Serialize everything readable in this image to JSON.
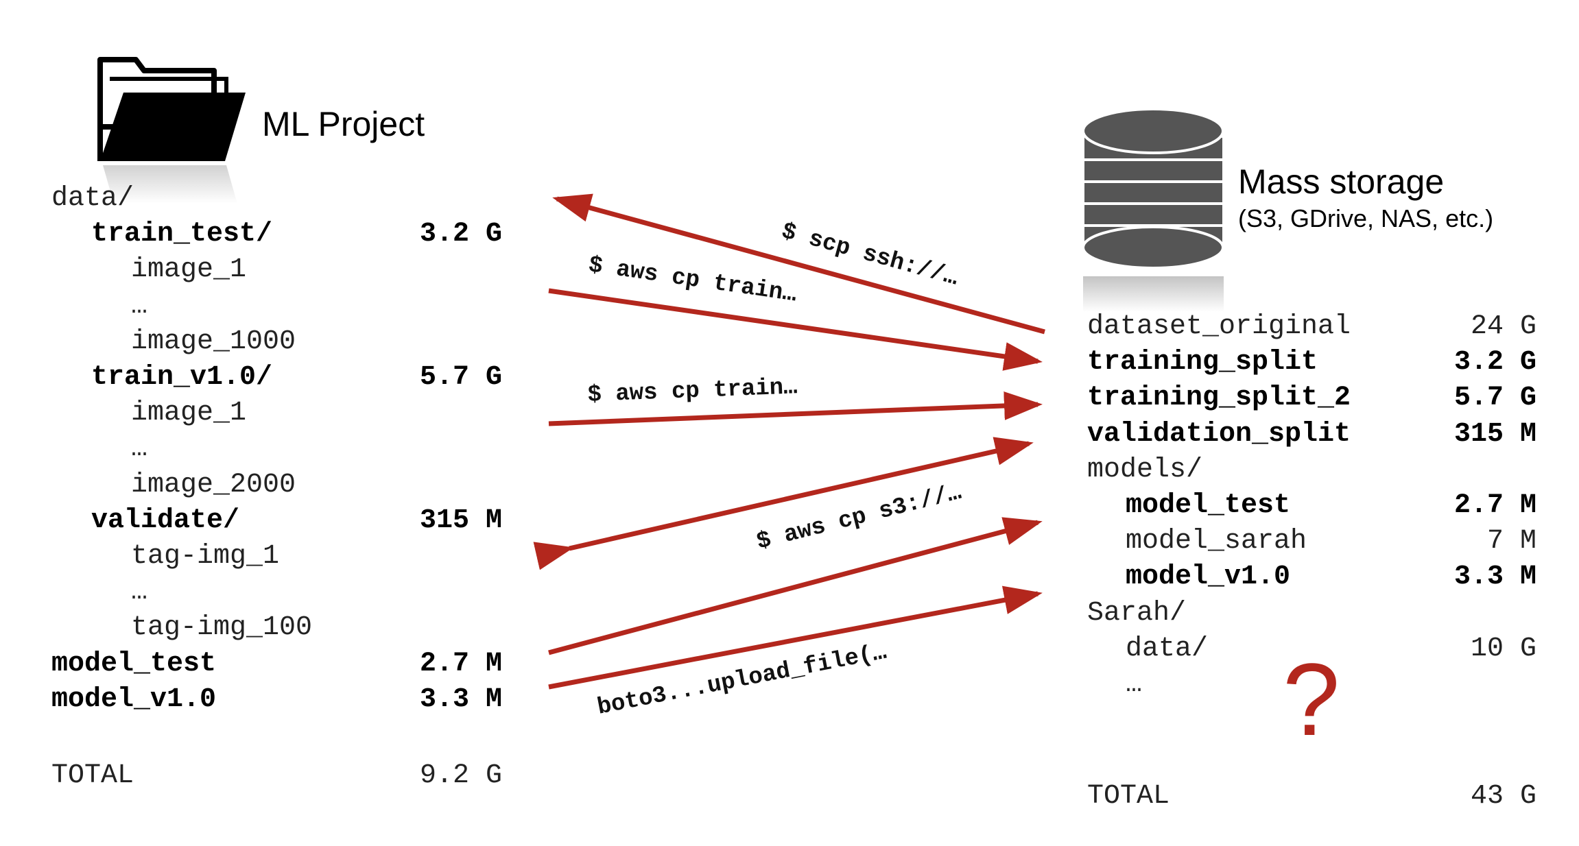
{
  "left": {
    "title": "ML Project",
    "icon": "folder-icon",
    "rows": [
      {
        "name": "data/",
        "indent": 0,
        "bold": false,
        "size": ""
      },
      {
        "name": "train_test/",
        "indent": 1,
        "bold": true,
        "size": "3.2 G"
      },
      {
        "name": "image_1",
        "indent": 2,
        "bold": false,
        "size": ""
      },
      {
        "name": "…",
        "indent": 2,
        "bold": false,
        "size": ""
      },
      {
        "name": "image_1000",
        "indent": 2,
        "bold": false,
        "size": ""
      },
      {
        "name": "train_v1.0/",
        "indent": 1,
        "bold": true,
        "size": "5.7 G"
      },
      {
        "name": "image_1",
        "indent": 2,
        "bold": false,
        "size": ""
      },
      {
        "name": "…",
        "indent": 2,
        "bold": false,
        "size": ""
      },
      {
        "name": "image_2000",
        "indent": 2,
        "bold": false,
        "size": ""
      },
      {
        "name": "validate/",
        "indent": 1,
        "bold": true,
        "size": "315 M"
      },
      {
        "name": "tag-img_1",
        "indent": 2,
        "bold": false,
        "size": ""
      },
      {
        "name": "…",
        "indent": 2,
        "bold": false,
        "size": ""
      },
      {
        "name": "tag-img_100",
        "indent": 2,
        "bold": false,
        "size": ""
      },
      {
        "name": "model_test",
        "indent": 0,
        "bold": true,
        "size": "2.7 M"
      },
      {
        "name": "model_v1.0",
        "indent": 0,
        "bold": true,
        "size": "3.3 M"
      }
    ],
    "total_label": "TOTAL",
    "total_value": "9.2 G"
  },
  "right": {
    "title": "Mass storage",
    "subtitle": "(S3, GDrive, NAS, etc.)",
    "icon": "database-icon",
    "rows": [
      {
        "name": "dataset_original",
        "indent": 0,
        "bold": false,
        "size": "24 G"
      },
      {
        "name": "training_split",
        "indent": 0,
        "bold": true,
        "size": "3.2 G"
      },
      {
        "name": "training_split_2",
        "indent": 0,
        "bold": true,
        "size": "5.7 G"
      },
      {
        "name": "validation_split",
        "indent": 0,
        "bold": true,
        "size": "315 M"
      },
      {
        "name": "models/",
        "indent": 0,
        "bold": false,
        "size": ""
      },
      {
        "name": "model_test",
        "indent": 1,
        "bold": true,
        "size": "2.7 M"
      },
      {
        "name": "model_sarah",
        "indent": 1,
        "bold": false,
        "size": "7 M"
      },
      {
        "name": "model_v1.0",
        "indent": 1,
        "bold": true,
        "size": "3.3 M"
      },
      {
        "name": "Sarah/",
        "indent": 0,
        "bold": false,
        "size": ""
      },
      {
        "name": "data/",
        "indent": 1,
        "bold": false,
        "size": "10 G"
      },
      {
        "name": "…",
        "indent": 1,
        "bold": false,
        "size": ""
      }
    ],
    "total_label": "TOTAL",
    "total_value": "43 G",
    "question_mark": "?"
  },
  "arrows": {
    "color": "#b3271d",
    "labels": [
      "$ scp ssh://…",
      "$ aws cp train…",
      "$ aws cp train…",
      "$ aws cp s3://…",
      "boto3...upload_file(…"
    ]
  }
}
